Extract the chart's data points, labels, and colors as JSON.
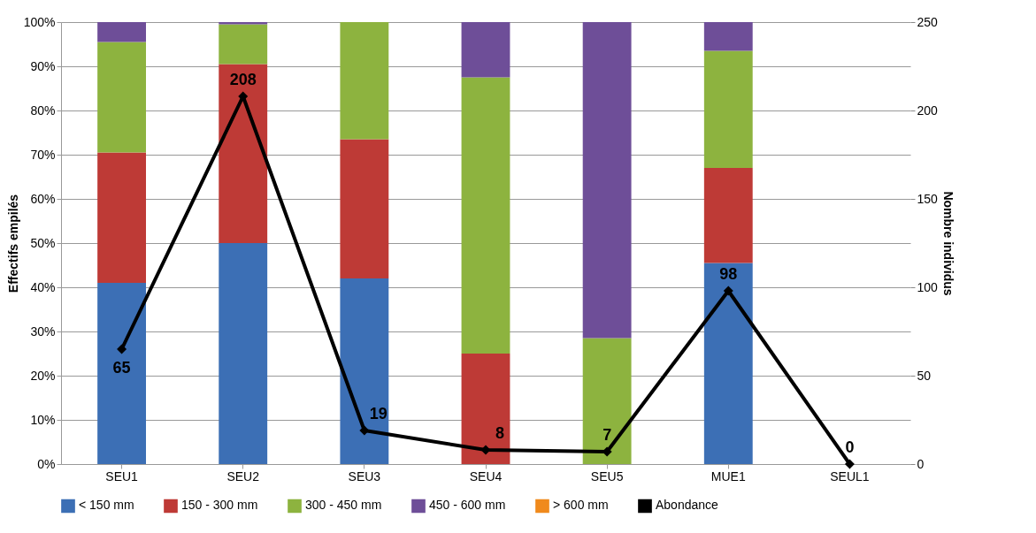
{
  "chart_data": {
    "type": "bar",
    "stacked": true,
    "ylabel": "Effectifs empilés",
    "y2label": "Nombre individus",
    "categories": [
      "SEU1",
      "SEU2",
      "SEU3",
      "SEU4",
      "SEU5",
      "MUE1",
      "SEUL1"
    ],
    "series": [
      {
        "name": "< 150 mm",
        "color": "#3c6fb5",
        "values": [
          41,
          50,
          42,
          0,
          0,
          45.5,
          0
        ]
      },
      {
        "name": "150 - 300 mm",
        "color": "#be3a36",
        "values": [
          29.5,
          40.5,
          31.5,
          25,
          0,
          21.5,
          0
        ]
      },
      {
        "name": "300 - 450 mm",
        "color": "#8db33f",
        "values": [
          25,
          9,
          26.5,
          62.5,
          28.5,
          26.5,
          0
        ]
      },
      {
        "name": "450 - 600 mm",
        "color": "#6e4e98",
        "values": [
          4.5,
          0.5,
          0,
          12.5,
          71.5,
          6.5,
          0
        ]
      },
      {
        "name": "> 600 mm",
        "color": "#f08a1c",
        "values": [
          0,
          0,
          0,
          0,
          0,
          0,
          0
        ]
      },
      {
        "name": "Abondance",
        "type": "line",
        "axis": "y2",
        "color": "#000000",
        "marker": "diamond",
        "data_labels": true,
        "values": [
          65,
          208,
          19,
          8,
          7,
          98,
          0
        ]
      }
    ],
    "ylim": [
      0,
      100
    ],
    "yticks": [
      {
        "value": 0,
        "label": "0%"
      },
      {
        "value": 10,
        "label": "10%"
      },
      {
        "value": 20,
        "label": "20%"
      },
      {
        "value": 30,
        "label": "30%"
      },
      {
        "value": 40,
        "label": "40%"
      },
      {
        "value": 50,
        "label": "50%"
      },
      {
        "value": 60,
        "label": "60%"
      },
      {
        "value": 70,
        "label": "70%"
      },
      {
        "value": 80,
        "label": "80%"
      },
      {
        "value": 90,
        "label": "90%"
      },
      {
        "value": 100,
        "label": "100%"
      }
    ],
    "y2lim": [
      0,
      250
    ],
    "y2ticks": [
      0,
      50,
      100,
      150,
      200,
      250
    ],
    "grid": "y",
    "legend": "bottom"
  }
}
